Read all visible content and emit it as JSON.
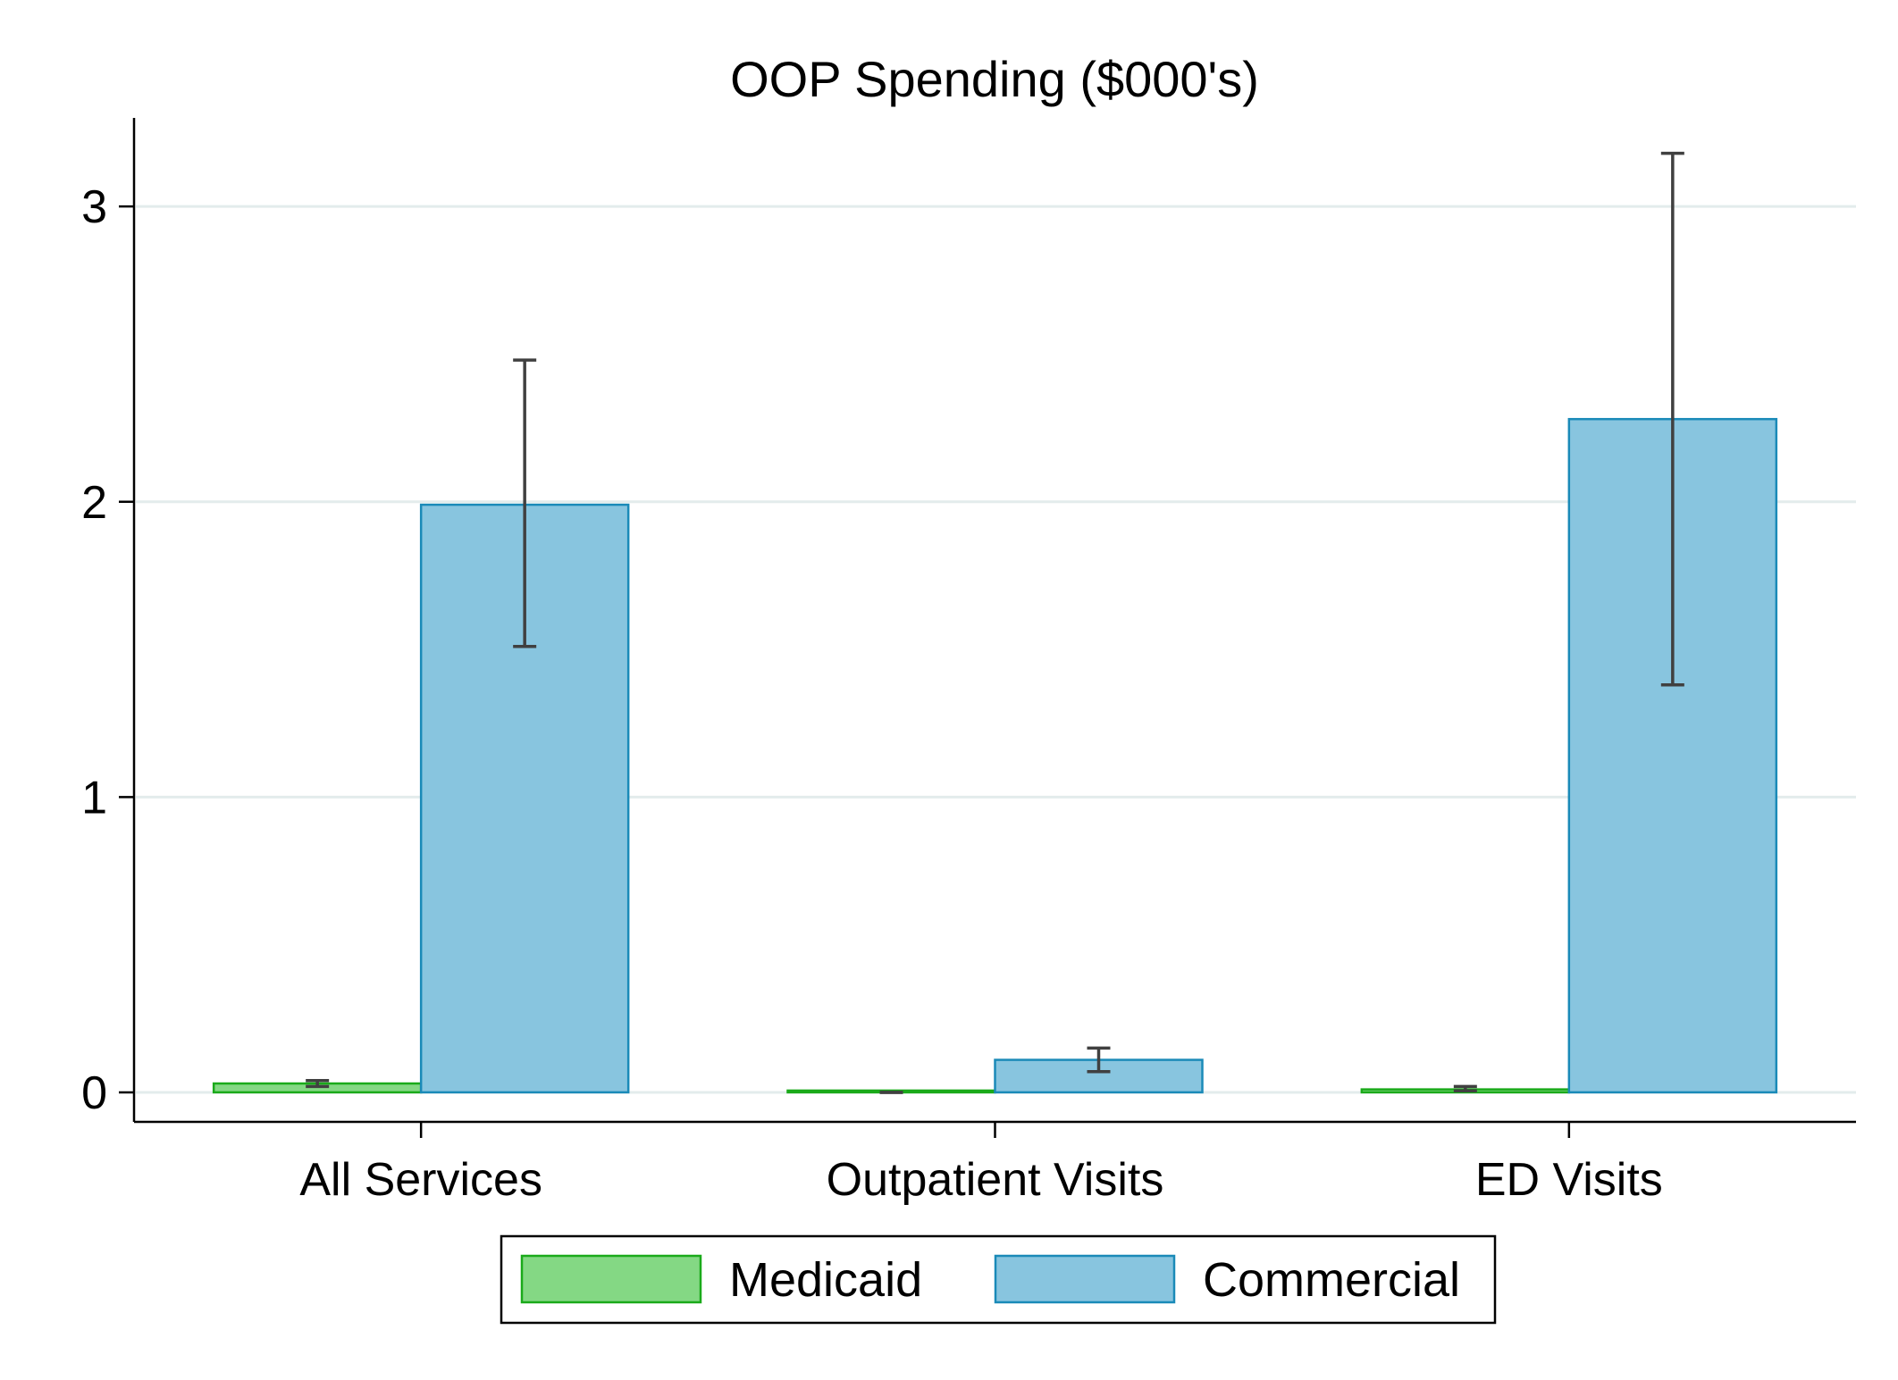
{
  "chart_data": {
    "type": "bar",
    "title": "OOP Spending ($000's)",
    "xlabel": "",
    "ylabel": "",
    "categories": [
      "All Services",
      "Outpatient Visits",
      "ED Visits"
    ],
    "ylim": [
      -0.1,
      3.3
    ],
    "yticks": [
      0,
      1,
      2,
      3
    ],
    "grid": true,
    "legend_position": "bottom-center",
    "series": [
      {
        "name": "Medicaid",
        "color": "#84d884",
        "edge_color": "#1aaa1a",
        "values": [
          0.03,
          0.0,
          0.01
        ],
        "ci": [
          [
            0.02,
            0.04
          ],
          [
            0.0,
            0.0
          ],
          [
            0.005,
            0.02
          ]
        ]
      },
      {
        "name": "Commercial",
        "color": "#88c5df",
        "edge_color": "#1a8ab8",
        "values": [
          1.99,
          0.11,
          2.28
        ],
        "ci": [
          [
            1.51,
            2.48
          ],
          [
            0.07,
            0.15
          ],
          [
            1.38,
            3.18
          ]
        ]
      }
    ]
  }
}
